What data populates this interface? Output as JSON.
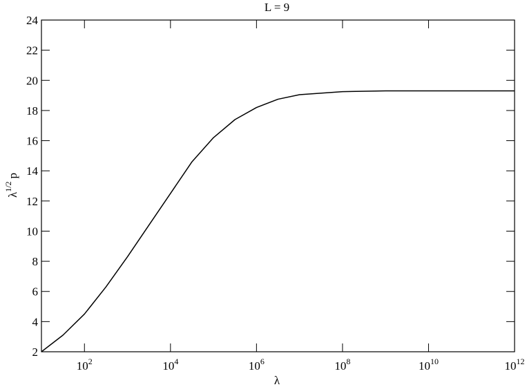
{
  "chart_data": {
    "type": "line",
    "title": "L = 9",
    "xlabel": "λ",
    "ylabel": {
      "base": "λ",
      "sup": "1/2",
      "rest": "p"
    },
    "x": [
      10,
      31.6,
      100,
      316,
      1000,
      3162,
      10000,
      31623,
      100000,
      316228,
      1000000,
      3162278,
      10000000,
      100000000,
      1000000000,
      10000000000,
      1000000000000
    ],
    "series": [
      {
        "name": "L = 9",
        "color": "#000000",
        "values": [
          2.0,
          3.1,
          4.5,
          6.3,
          8.3,
          10.4,
          12.5,
          14.6,
          16.2,
          17.4,
          18.2,
          18.75,
          19.05,
          19.25,
          19.3,
          19.3,
          19.3
        ]
      }
    ],
    "xscale": "log",
    "xlim": [
      10,
      1000000000000
    ],
    "xticks": [
      {
        "value": 100,
        "label": "10",
        "exponent": "2"
      },
      {
        "value": 10000,
        "label": "10",
        "exponent": "4"
      },
      {
        "value": 1000000,
        "label": "10",
        "exponent": "6"
      },
      {
        "value": 100000000,
        "label": "10",
        "exponent": "8"
      },
      {
        "value": 10000000000,
        "label": "10",
        "exponent": "10"
      },
      {
        "value": 1000000000000,
        "label": "10",
        "exponent": "12"
      }
    ],
    "ylim": [
      2,
      24
    ],
    "yticks": [
      2,
      4,
      6,
      8,
      10,
      12,
      14,
      16,
      18,
      20,
      22,
      24
    ]
  }
}
